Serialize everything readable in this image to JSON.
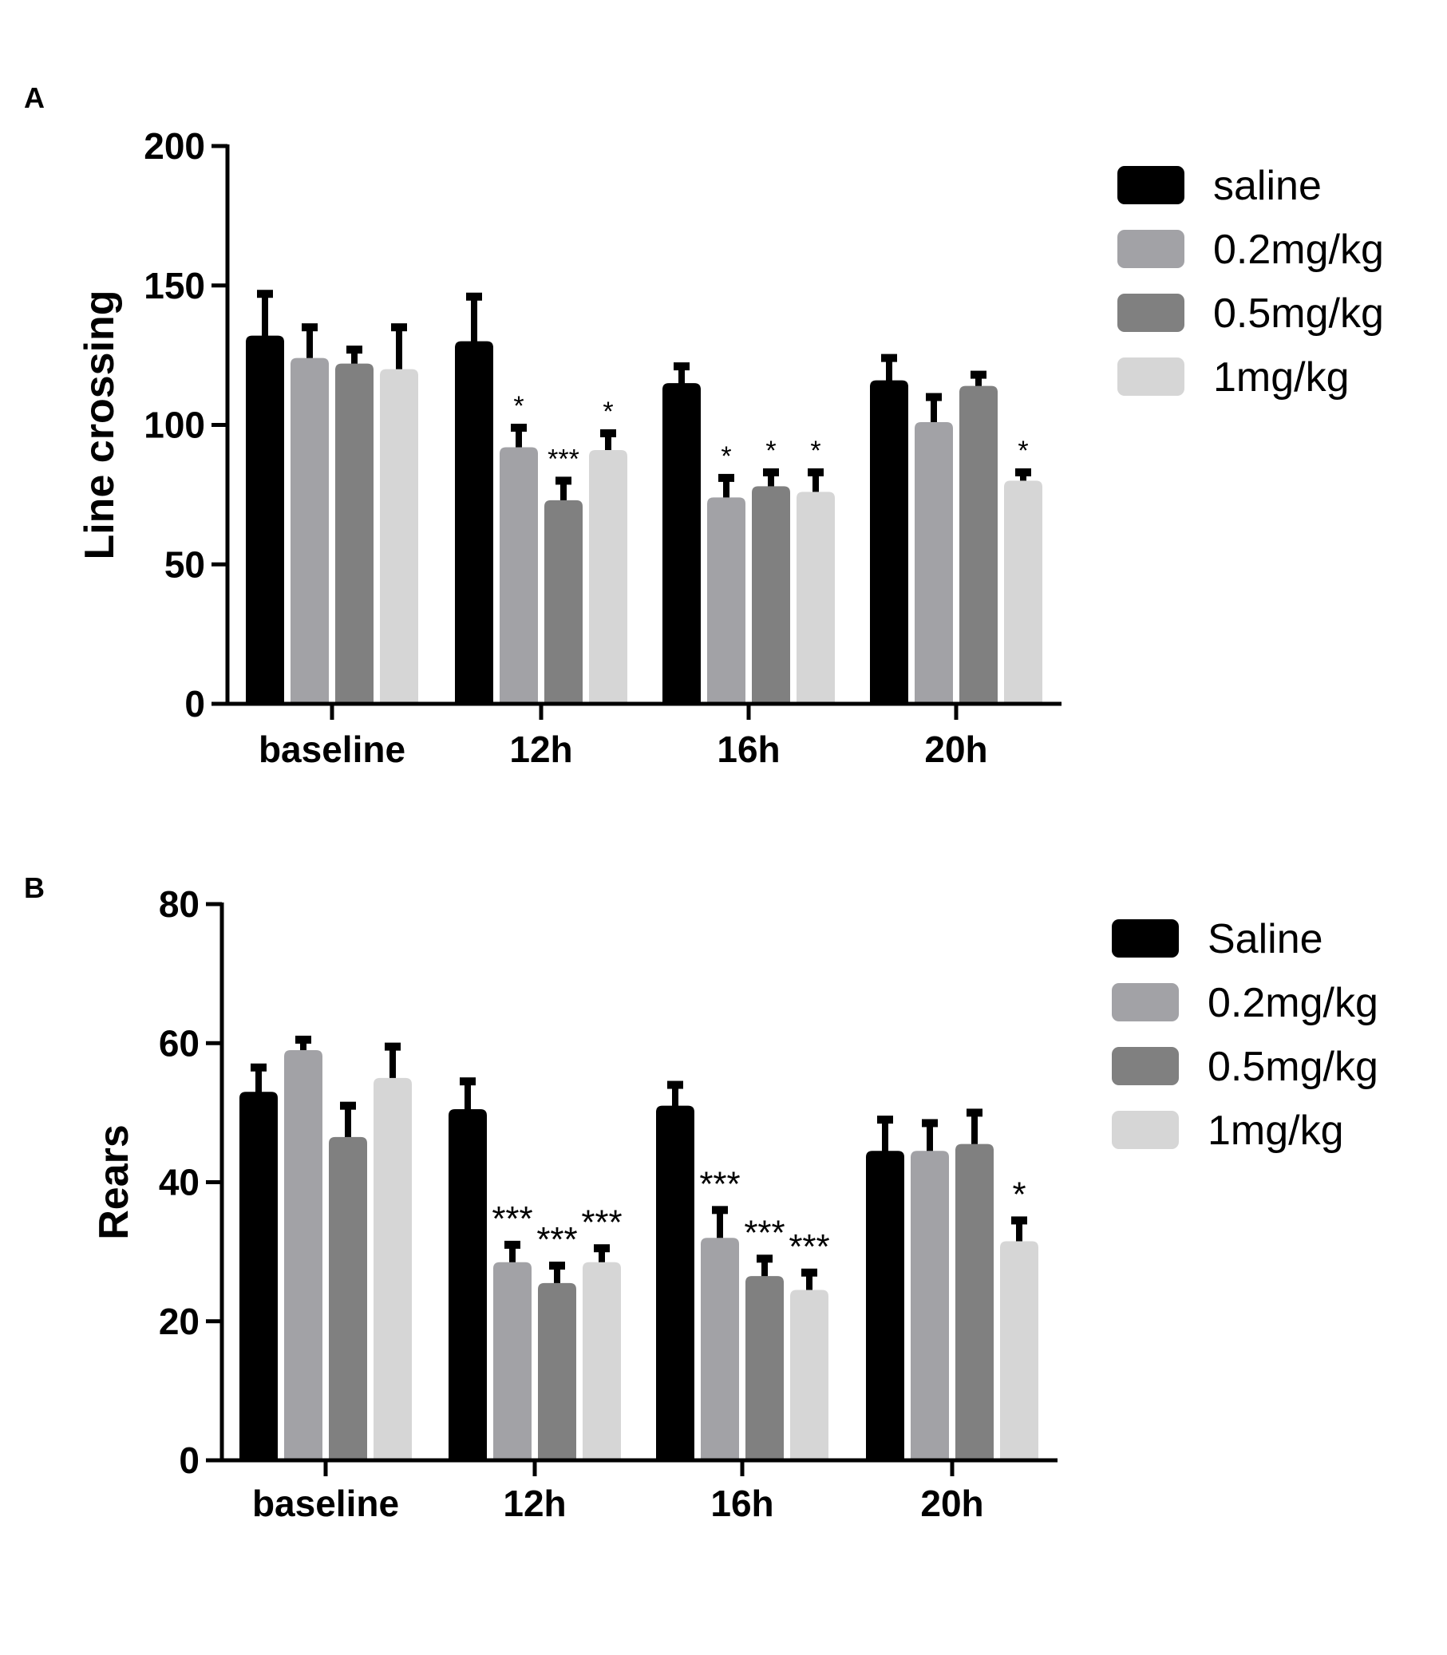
{
  "chart_data": [
    {
      "type": "bar",
      "panel_label": "A",
      "title": "",
      "xlabel": "",
      "ylabel": "Line crossing",
      "ylim": [
        0,
        200
      ],
      "yticks": [
        "0",
        "50",
        "100",
        "150",
        "200"
      ],
      "categories": [
        "baseline",
        "12h",
        "16h",
        "20h"
      ],
      "legend_position": "top-right",
      "series": [
        {
          "name": "saline",
          "color": "#000000",
          "values": [
            132,
            130,
            115,
            116
          ],
          "errors": [
            15,
            16,
            6,
            8
          ],
          "annotations": [
            "",
            "",
            "",
            ""
          ]
        },
        {
          "name": "0.2mg/kg",
          "color": "#a2a2a6",
          "values": [
            124,
            92,
            74,
            101
          ],
          "errors": [
            11,
            7,
            7,
            9
          ],
          "annotations": [
            "",
            "*",
            "*",
            ""
          ]
        },
        {
          "name": "0.5mg/kg",
          "color": "#808080",
          "values": [
            122,
            73,
            78,
            114
          ],
          "errors": [
            5,
            7,
            5,
            4
          ],
          "annotations": [
            "",
            "***",
            "*",
            ""
          ]
        },
        {
          "name": "1mg/kg",
          "color": "#d6d6d6",
          "values": [
            120,
            91,
            76,
            80
          ],
          "errors": [
            15,
            6,
            7,
            3
          ],
          "annotations": [
            "",
            "*",
            "*",
            "*"
          ]
        }
      ]
    },
    {
      "type": "bar",
      "panel_label": "B",
      "title": "",
      "xlabel": "",
      "ylabel": "Rears",
      "ylim": [
        0,
        80
      ],
      "yticks": [
        "0",
        "20",
        "40",
        "60",
        "80"
      ],
      "categories": [
        "baseline",
        "12h",
        "16h",
        "20h"
      ],
      "legend_position": "top-right",
      "series": [
        {
          "name": "Saline",
          "color": "#000000",
          "values": [
            53,
            50.5,
            51,
            44.5
          ],
          "errors": [
            3.5,
            4,
            3,
            4.5
          ],
          "annotations": [
            "",
            "",
            "",
            ""
          ]
        },
        {
          "name": "0.2mg/kg",
          "color": "#a2a2a6",
          "values": [
            59,
            28.5,
            32,
            44.5
          ],
          "errors": [
            1.5,
            2.5,
            4,
            4
          ],
          "annotations": [
            "",
            "***",
            "***",
            ""
          ]
        },
        {
          "name": "0.5mg/kg",
          "color": "#808080",
          "values": [
            46.5,
            25.5,
            26.5,
            45.5
          ],
          "errors": [
            4.5,
            2.5,
            2.5,
            4.5
          ],
          "annotations": [
            "",
            "***",
            "***",
            ""
          ]
        },
        {
          "name": "1mg/kg",
          "color": "#d6d6d6",
          "values": [
            55,
            28.5,
            24.5,
            31.5
          ],
          "errors": [
            4.5,
            2,
            2.5,
            3
          ],
          "annotations": [
            "",
            "***",
            "***",
            "*"
          ]
        }
      ]
    }
  ]
}
